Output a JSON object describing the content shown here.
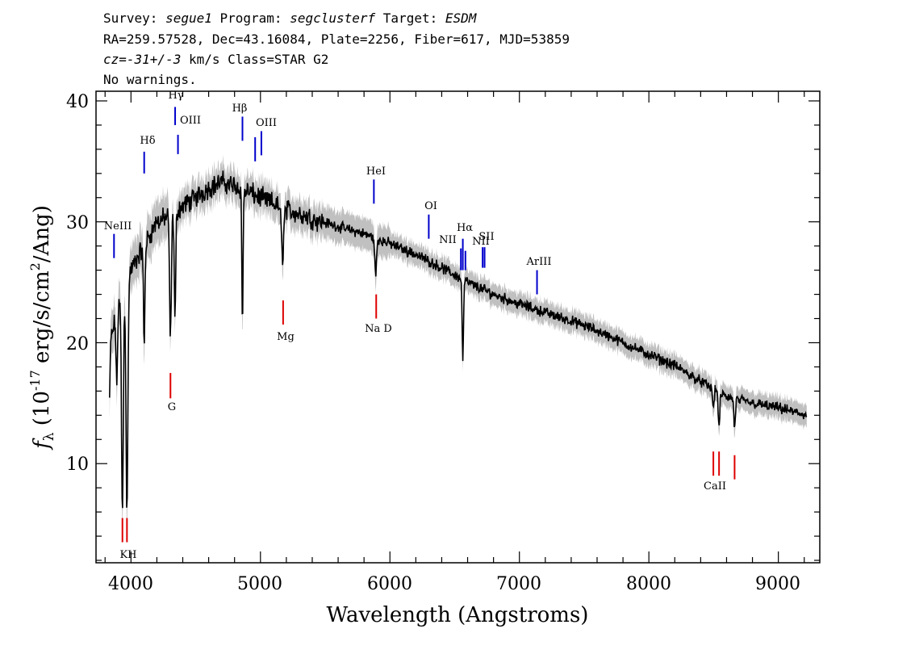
{
  "header": {
    "line1": {
      "survey_label": "Survey: ",
      "survey": "segue1",
      "program_label": " Program: ",
      "program": "segclusterf",
      "target_label": " Target: ",
      "target": "ESDM"
    },
    "line2": "RA=259.57528, Dec=43.16084, Plate=2256, Fiber=617, MJD=53859",
    "line3": {
      "cz_label": "cz",
      "cz_value": "=-31+/-3",
      "rest": " km/s Class=STAR G2"
    },
    "line4": "No warnings."
  },
  "chart_data": {
    "type": "line",
    "xlabel": "Wavelength (Angstroms)",
    "ylabel": {
      "f": "f",
      "sub": "λ",
      "pre": " (10",
      "sup1": "-17",
      "mid": " erg/s/cm",
      "sup2": "2",
      "post": "/Ang)"
    },
    "xlim": [
      3730,
      9320
    ],
    "ylim": [
      1.8,
      40.8
    ],
    "xticks": [
      4000,
      5000,
      6000,
      7000,
      8000,
      9000
    ],
    "xtick_labels": [
      "4000",
      "5000",
      "6000",
      "7000",
      "8000",
      "9000"
    ],
    "yticks": [
      10,
      20,
      30,
      40
    ],
    "ytick_labels": [
      "10",
      "20",
      "30",
      "40"
    ],
    "grid": false,
    "legend": "none",
    "colors": {
      "flux": "#000000",
      "error_band": "#c0c0c0",
      "emission": "#0000cc",
      "absorption": "#dd0000"
    },
    "continuum": [
      [
        3850,
        20.5
      ],
      [
        3900,
        23
      ],
      [
        4000,
        26
      ],
      [
        4100,
        28
      ],
      [
        4200,
        30
      ],
      [
        4300,
        30.5
      ],
      [
        4400,
        31.3
      ],
      [
        4500,
        32
      ],
      [
        4600,
        32.8
      ],
      [
        4700,
        33.3
      ],
      [
        4800,
        33
      ],
      [
        4900,
        32.5
      ],
      [
        5000,
        32
      ],
      [
        5100,
        31.5
      ],
      [
        5200,
        31
      ],
      [
        5400,
        30.3
      ],
      [
        5600,
        29.6
      ],
      [
        5800,
        29
      ],
      [
        6000,
        28.2
      ],
      [
        6200,
        27.3
      ],
      [
        6400,
        26.2
      ],
      [
        6600,
        25
      ],
      [
        6800,
        24
      ],
      [
        7000,
        23.2
      ],
      [
        7200,
        22.5
      ],
      [
        7400,
        21.8
      ],
      [
        7600,
        21
      ],
      [
        7800,
        20
      ],
      [
        8000,
        19
      ],
      [
        8200,
        18.1
      ],
      [
        8400,
        16.8
      ],
      [
        8600,
        15.5
      ],
      [
        8800,
        15
      ],
      [
        9000,
        14.6
      ],
      [
        9220,
        14
      ]
    ],
    "absorption_features": [
      {
        "x": 3934,
        "depth": 18,
        "width": 10
      },
      {
        "x": 3969,
        "depth": 19,
        "width": 10
      },
      {
        "x": 3890,
        "depth": 6,
        "width": 8
      },
      {
        "x": 3835,
        "depth": 5,
        "width": 6
      },
      {
        "x": 4102,
        "depth": 8,
        "width": 8
      },
      {
        "x": 4305,
        "depth": 10,
        "width": 10
      },
      {
        "x": 4340,
        "depth": 9,
        "width": 8
      },
      {
        "x": 4861,
        "depth": 11,
        "width": 7
      },
      {
        "x": 5170,
        "depth": 4,
        "width": 12
      },
      {
        "x": 5890,
        "depth": 3,
        "width": 10
      },
      {
        "x": 6563,
        "depth": 7,
        "width": 7
      },
      {
        "x": 8498,
        "depth": 1.5,
        "width": 8
      },
      {
        "x": 8542,
        "depth": 3,
        "width": 8
      },
      {
        "x": 8662,
        "depth": 2.5,
        "width": 8
      }
    ],
    "emission_lines": [
      {
        "label": "NeIII",
        "x": 3869,
        "y1": 27.0,
        "y2": 29.0
      },
      {
        "label": "Hδ",
        "x": 4102,
        "y1": 34.0,
        "y2": 35.8
      },
      {
        "label": "Hγ",
        "x": 4341,
        "y1": 38.0,
        "y2": 39.5
      },
      {
        "label": "OIII",
        "x": 4363,
        "y1": 35.6,
        "y2": 37.2
      },
      {
        "label": "Hβ",
        "x": 4861,
        "y1": 36.7,
        "y2": 38.7
      },
      {
        "label": "OIII",
        "x": 4959,
        "y1": 35.0,
        "y2": 37.0
      },
      {
        "label": "OIII",
        "x": 5007,
        "y1": 35.5,
        "y2": 37.5
      },
      {
        "label": "HeI",
        "x": 5876,
        "y1": 31.5,
        "y2": 33.5
      },
      {
        "label": "OI",
        "x": 6300,
        "y1": 28.6,
        "y2": 30.6
      },
      {
        "label": "NII",
        "x": 6548,
        "y1": 26.0,
        "y2": 27.8
      },
      {
        "label": "Hα",
        "x": 6563,
        "y1": 26.0,
        "y2": 28.6
      },
      {
        "label": "NII",
        "x": 6583,
        "y1": 26.0,
        "y2": 27.6
      },
      {
        "label": "SII",
        "x": 6716,
        "y1": 26.2,
        "y2": 27.9
      },
      {
        "label": "SII",
        "x": 6731,
        "y1": 26.2,
        "y2": 27.9
      },
      {
        "label": "ArIII",
        "x": 7136,
        "y1": 24.0,
        "y2": 26.0
      }
    ],
    "absorption_lines": [
      {
        "label": "K",
        "x": 3934,
        "y1": 3.5,
        "y2": 5.5
      },
      {
        "label": "H",
        "x": 3969,
        "y1": 3.5,
        "y2": 5.5
      },
      {
        "label": "G",
        "x": 4305,
        "y1": 15.4,
        "y2": 17.5
      },
      {
        "label": "Mg",
        "x": 5175,
        "y1": 21.5,
        "y2": 23.5
      },
      {
        "label": "Na D",
        "x": 5894,
        "y1": 22.0,
        "y2": 24.0
      },
      {
        "label": "CaII",
        "x": 8498,
        "y1": 9.0,
        "y2": 11.0
      },
      {
        "label": "CaII",
        "x": 8542,
        "y1": 9.0,
        "y2": 11.0
      },
      {
        "label": "CaII",
        "x": 8662,
        "y1": 8.7,
        "y2": 10.7
      }
    ],
    "label_texts": {
      "neiii": "NeIII",
      "hdelta": "Hδ",
      "hgamma": "Hγ",
      "oiii_a": "OIII",
      "hbeta": "Hβ",
      "oiii_b": "OIII",
      "hei": "HeI",
      "oi": "OI",
      "nii_a": "NII",
      "halpha": "Hα",
      "nii_b": "NII",
      "sii": "SII",
      "ariii": "ArIII",
      "kh": "KH",
      "g": "G",
      "mg": "Mg",
      "nad": "Na D",
      "caii": "CaII"
    }
  }
}
